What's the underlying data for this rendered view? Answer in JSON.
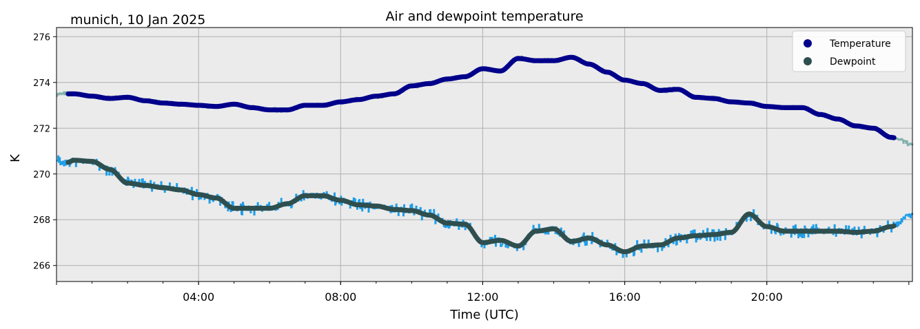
{
  "chart_data": {
    "type": "line",
    "title": "Air and dewpoint temperature",
    "subtitle": "munich, 10 Jan 2025",
    "xlabel": "Time (UTC)",
    "ylabel": "K",
    "xlim": [
      0,
      24.1
    ],
    "ylim": [
      265.3,
      276.4
    ],
    "x_ticks": [
      {
        "h": 4,
        "label": "04:00"
      },
      {
        "h": 8,
        "label": "08:00"
      },
      {
        "h": 12,
        "label": "12:00"
      },
      {
        "h": 16,
        "label": "16:00"
      },
      {
        "h": 20,
        "label": "20:00"
      }
    ],
    "y_ticks": [
      266,
      268,
      270,
      272,
      274,
      276
    ],
    "grid": true,
    "legend": "top-right",
    "series": [
      {
        "name": "Temperature",
        "marker_color": "#00008b",
        "raw_color": "#7fb0ac",
        "x": [
          0.0,
          0.3,
          0.5,
          1.0,
          1.5,
          2.0,
          2.5,
          3.0,
          3.5,
          4.0,
          4.5,
          5.0,
          5.5,
          6.0,
          6.5,
          7.0,
          7.5,
          8.0,
          8.5,
          9.0,
          9.5,
          10.0,
          10.5,
          11.0,
          11.5,
          12.0,
          12.5,
          13.0,
          13.5,
          14.0,
          14.5,
          15.0,
          15.5,
          16.0,
          16.5,
          17.0,
          17.5,
          18.0,
          18.5,
          19.0,
          19.5,
          20.0,
          20.5,
          21.0,
          21.5,
          22.0,
          22.5,
          23.0,
          23.5,
          24.1
        ],
        "y": [
          273.5,
          273.5,
          273.5,
          273.4,
          273.3,
          273.35,
          273.2,
          273.1,
          273.05,
          273.0,
          272.95,
          273.05,
          272.9,
          272.8,
          272.8,
          273.0,
          273.0,
          273.15,
          273.25,
          273.4,
          273.5,
          273.85,
          273.95,
          274.15,
          274.25,
          274.6,
          274.5,
          275.05,
          274.95,
          274.95,
          275.1,
          274.8,
          274.45,
          274.1,
          273.95,
          273.65,
          273.7,
          273.35,
          273.3,
          273.15,
          273.1,
          272.95,
          272.9,
          272.9,
          272.6,
          272.4,
          272.1,
          272.0,
          271.6,
          271.3
        ]
      },
      {
        "name": "Dewpoint",
        "marker_color": "#2f4f4f",
        "raw_color": "#1e9ee8",
        "x": [
          0.0,
          0.3,
          0.5,
          1.0,
          1.5,
          2.0,
          2.5,
          3.0,
          3.5,
          4.0,
          4.5,
          5.0,
          5.5,
          6.0,
          6.5,
          7.0,
          7.5,
          8.0,
          8.5,
          9.0,
          9.5,
          10.0,
          10.5,
          11.0,
          11.5,
          12.0,
          12.5,
          13.0,
          13.5,
          14.0,
          14.5,
          15.0,
          15.5,
          16.0,
          16.5,
          17.0,
          17.5,
          18.0,
          18.5,
          19.0,
          19.5,
          20.0,
          20.5,
          21.0,
          21.5,
          22.0,
          22.5,
          23.0,
          23.5,
          24.1
        ],
        "y": [
          270.5,
          270.5,
          270.6,
          270.55,
          270.2,
          269.6,
          269.5,
          269.4,
          269.3,
          269.1,
          268.95,
          268.5,
          268.5,
          268.5,
          268.7,
          269.05,
          269.05,
          268.85,
          268.65,
          268.6,
          268.45,
          268.4,
          268.2,
          267.85,
          267.8,
          267.0,
          267.1,
          266.85,
          267.5,
          267.6,
          267.05,
          267.2,
          266.9,
          266.6,
          266.85,
          266.9,
          267.2,
          267.3,
          267.35,
          267.45,
          268.25,
          267.7,
          267.5,
          267.5,
          267.5,
          267.5,
          267.45,
          267.5,
          267.7,
          268.3
        ]
      }
    ]
  }
}
